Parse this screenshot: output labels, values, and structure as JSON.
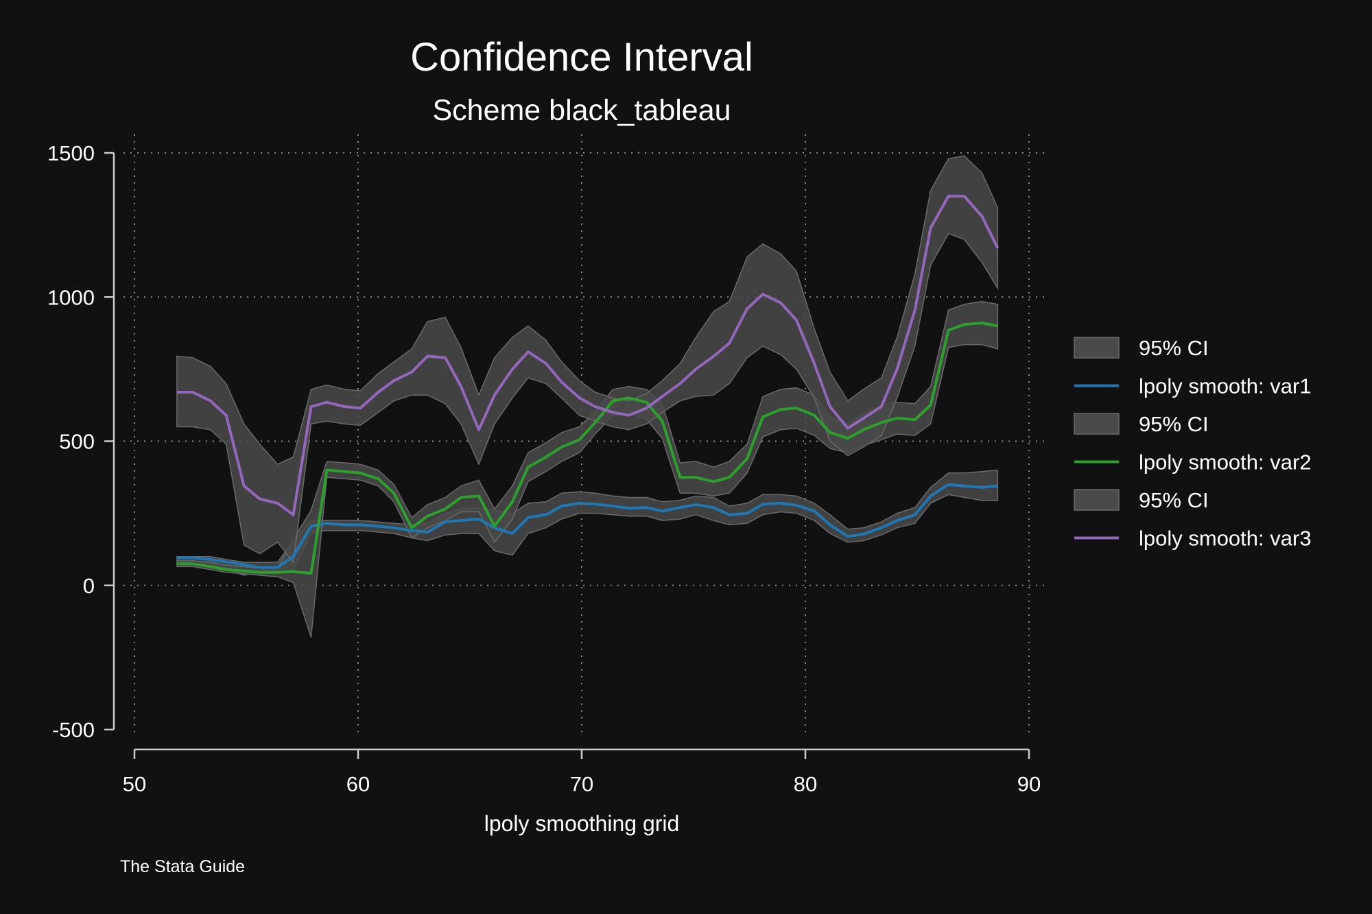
{
  "chart_data": {
    "type": "line",
    "title": "Confidence Interval",
    "subtitle": "Scheme black_tableau",
    "xlabel": "lpoly smoothing grid",
    "ylabel": "",
    "note": "The Stata Guide",
    "xlim": [
      50,
      90
    ],
    "ylim": [
      -500,
      1500
    ],
    "xticks": [
      50,
      60,
      70,
      80,
      90
    ],
    "yticks": [
      -500,
      0,
      500,
      1000,
      1500
    ],
    "grid": true,
    "legend_position": "right",
    "colors": {
      "background": "#111111",
      "ci_fill": "#4a4a4a",
      "ci_edge": "#6a6a6a",
      "grid": "#8a8a8a",
      "axis": "#cccccc"
    },
    "x": [
      51.9,
      52.6,
      53.4,
      54.1,
      54.9,
      55.6,
      56.4,
      57.1,
      57.9,
      58.6,
      59.4,
      60.1,
      60.9,
      61.6,
      62.4,
      63.1,
      63.9,
      64.6,
      65.4,
      66.1,
      66.9,
      67.6,
      68.4,
      69.1,
      69.9,
      70.6,
      71.4,
      72.1,
      72.9,
      73.6,
      74.4,
      75.1,
      75.9,
      76.6,
      77.4,
      78.1,
      78.9,
      79.6,
      80.4,
      81.1,
      81.9,
      82.6,
      83.4,
      84.1,
      84.9,
      85.6,
      86.4,
      87.1,
      87.9,
      88.6
    ],
    "series": [
      {
        "name": "lpoly smooth: var1",
        "ci_label": "95% CI",
        "color": "#1f77b4",
        "values": [
          95,
          95,
          90,
          82,
          72,
          62,
          62,
          100,
          205,
          215,
          210,
          210,
          205,
          200,
          190,
          185,
          220,
          225,
          230,
          200,
          180,
          235,
          245,
          275,
          285,
          282,
          275,
          268,
          270,
          258,
          270,
          280,
          270,
          245,
          250,
          282,
          285,
          278,
          258,
          210,
          170,
          178,
          200,
          225,
          245,
          310,
          350,
          345,
          340,
          345
        ],
        "ci_low": [
          85,
          85,
          75,
          55,
          35,
          45,
          50,
          50,
          185,
          190,
          190,
          190,
          185,
          180,
          165,
          155,
          175,
          180,
          180,
          120,
          105,
          180,
          200,
          230,
          250,
          250,
          245,
          240,
          240,
          225,
          230,
          245,
          225,
          210,
          215,
          245,
          255,
          250,
          225,
          180,
          150,
          155,
          175,
          200,
          215,
          285,
          315,
          305,
          295,
          295
        ],
        "ci_high": [
          100,
          100,
          100,
          90,
          80,
          80,
          80,
          155,
          225,
          225,
          225,
          225,
          220,
          215,
          210,
          215,
          250,
          265,
          270,
          260,
          250,
          285,
          290,
          320,
          325,
          320,
          310,
          305,
          305,
          290,
          295,
          310,
          305,
          275,
          285,
          315,
          315,
          310,
          285,
          245,
          195,
          200,
          220,
          250,
          270,
          340,
          390,
          390,
          395,
          400
        ]
      },
      {
        "name": "lpoly smooth: var2",
        "ci_label": "95% CI",
        "color": "#2ca02c",
        "values": [
          75,
          75,
          65,
          55,
          50,
          45,
          45,
          48,
          42,
          400,
          395,
          390,
          370,
          320,
          200,
          240,
          265,
          305,
          310,
          205,
          290,
          410,
          445,
          480,
          505,
          565,
          640,
          650,
          635,
          570,
          375,
          375,
          360,
          375,
          440,
          585,
          610,
          615,
          590,
          530,
          510,
          540,
          565,
          580,
          575,
          625,
          885,
          905,
          910,
          900
        ],
        "ci_low": [
          65,
          65,
          55,
          45,
          40,
          35,
          30,
          10,
          -180,
          375,
          370,
          365,
          345,
          290,
          165,
          200,
          225,
          255,
          255,
          150,
          230,
          360,
          395,
          430,
          460,
          525,
          590,
          600,
          575,
          510,
          320,
          320,
          310,
          320,
          390,
          515,
          540,
          545,
          520,
          475,
          460,
          485,
          505,
          525,
          520,
          560,
          825,
          835,
          835,
          820
        ],
        "ci_high": [
          85,
          85,
          80,
          70,
          65,
          60,
          60,
          160,
          260,
          430,
          425,
          420,
          400,
          350,
          235,
          280,
          305,
          345,
          365,
          265,
          345,
          460,
          495,
          530,
          550,
          605,
          680,
          690,
          680,
          630,
          425,
          430,
          410,
          430,
          490,
          655,
          680,
          685,
          660,
          585,
          560,
          595,
          625,
          635,
          630,
          690,
          955,
          975,
          985,
          975
        ]
      },
      {
        "name": "lpoly smooth: var3",
        "ci_label": "95% CI",
        "color": "#9467bd",
        "values": [
          670,
          670,
          640,
          590,
          345,
          300,
          285,
          245,
          620,
          635,
          620,
          615,
          670,
          710,
          740,
          795,
          790,
          690,
          540,
          660,
          750,
          810,
          770,
          705,
          650,
          620,
          600,
          590,
          615,
          655,
          700,
          750,
          795,
          840,
          960,
          1010,
          980,
          920,
          770,
          620,
          545,
          580,
          620,
          750,
          955,
          1240,
          1350,
          1350,
          1280,
          1170
        ],
        "ci_low": [
          550,
          550,
          540,
          490,
          140,
          110,
          150,
          80,
          560,
          570,
          560,
          555,
          600,
          640,
          660,
          660,
          630,
          560,
          420,
          560,
          650,
          720,
          700,
          650,
          590,
          570,
          550,
          540,
          560,
          600,
          640,
          655,
          660,
          700,
          790,
          830,
          800,
          750,
          650,
          500,
          450,
          480,
          520,
          650,
          830,
          1110,
          1220,
          1200,
          1120,
          1030
        ],
        "ci_high": [
          795,
          790,
          760,
          700,
          560,
          490,
          420,
          445,
          680,
          695,
          680,
          675,
          735,
          775,
          820,
          915,
          930,
          825,
          660,
          790,
          860,
          900,
          850,
          775,
          710,
          670,
          650,
          640,
          665,
          710,
          770,
          860,
          950,
          985,
          1140,
          1185,
          1150,
          1090,
          890,
          740,
          640,
          680,
          720,
          860,
          1080,
          1370,
          1480,
          1490,
          1430,
          1310
        ]
      }
    ],
    "legend": [
      {
        "label": "95% CI",
        "kind": "area"
      },
      {
        "label": "lpoly smooth: var1",
        "kind": "line",
        "series": 0
      },
      {
        "label": "95% CI",
        "kind": "area"
      },
      {
        "label": "lpoly smooth: var2",
        "kind": "line",
        "series": 1
      },
      {
        "label": "95% CI",
        "kind": "area"
      },
      {
        "label": "lpoly smooth: var3",
        "kind": "line",
        "series": 2
      }
    ]
  }
}
